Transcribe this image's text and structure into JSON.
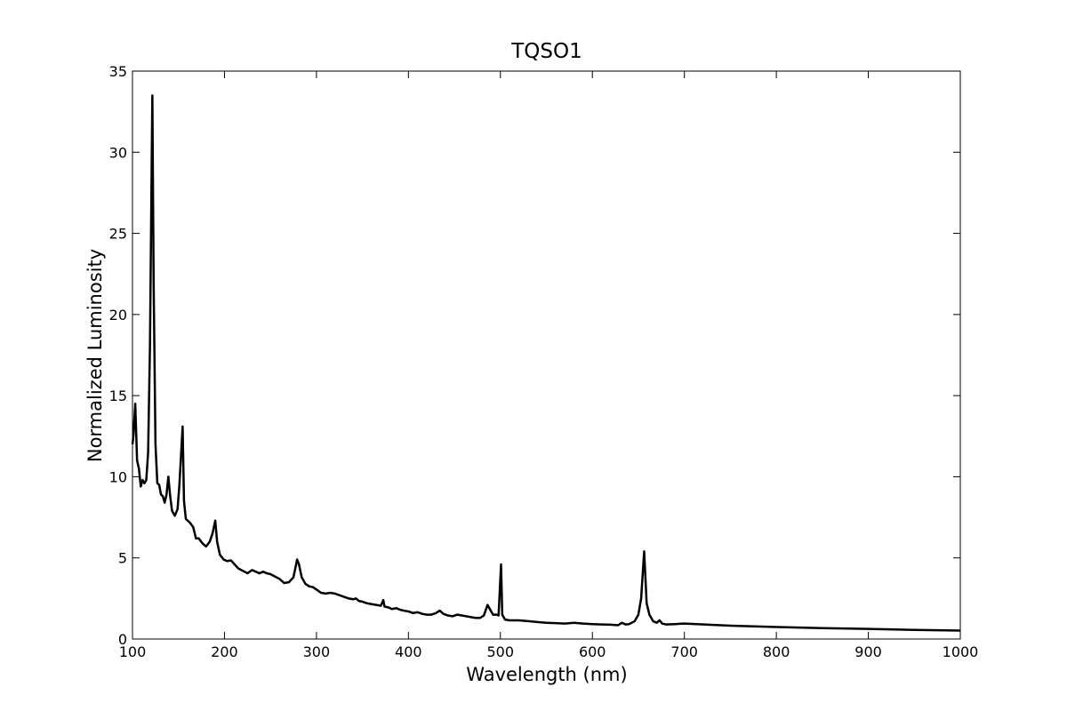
{
  "chart_data": {
    "type": "line",
    "title": "TQSO1",
    "xlabel": "Wavelength (nm)",
    "ylabel": "Normalized Luminosity",
    "color": "#000000",
    "xlim": [
      100,
      1000
    ],
    "ylim": [
      0,
      35
    ],
    "xticks": [
      100,
      200,
      300,
      400,
      500,
      600,
      700,
      800,
      900,
      1000
    ],
    "yticks": [
      0,
      5,
      10,
      15,
      20,
      25,
      30,
      35
    ],
    "x": [
      100,
      101,
      103,
      105,
      107,
      109,
      111,
      113,
      115,
      117,
      119,
      121.6,
      123,
      125,
      127,
      129,
      131,
      133,
      135,
      137,
      139,
      141,
      143,
      146,
      149,
      151,
      154.5,
      156,
      158,
      162,
      166,
      169,
      172,
      176,
      180,
      184,
      187,
      190,
      192,
      195,
      199,
      203,
      207,
      211,
      215,
      220,
      225,
      230,
      234,
      238,
      242,
      246,
      250,
      255,
      260,
      265,
      270,
      275,
      279,
      281,
      284,
      288,
      292,
      296,
      300,
      305,
      310,
      315,
      320,
      325,
      330,
      335,
      340,
      343,
      346,
      350,
      355,
      360,
      365,
      370,
      372.7,
      374,
      378,
      382,
      387,
      391,
      395,
      400,
      405,
      410,
      415,
      420,
      425,
      430,
      434,
      438,
      443,
      448,
      453,
      458,
      463,
      468,
      473,
      478,
      482,
      486,
      489,
      492,
      496,
      498,
      500.7,
      502,
      505,
      510,
      520,
      530,
      540,
      550,
      560,
      570,
      580,
      590,
      600,
      610,
      620,
      628,
      632,
      636,
      640,
      646,
      650,
      653,
      656.3,
      659,
      662,
      666,
      670,
      673,
      676,
      680,
      690,
      700,
      750,
      800,
      850,
      900,
      950,
      1000
    ],
    "values": [
      12.0,
      12.5,
      14.5,
      11.0,
      10.5,
      9.4,
      9.8,
      9.6,
      9.8,
      11.5,
      18,
      33.5,
      22,
      12,
      9.6,
      9.5,
      8.9,
      8.8,
      8.4,
      8.9,
      10.0,
      8.8,
      7.9,
      7.6,
      8.0,
      9.5,
      13.1,
      8.5,
      7.4,
      7.2,
      6.9,
      6.2,
      6.2,
      5.9,
      5.7,
      6.0,
      6.5,
      7.3,
      6.0,
      5.2,
      4.9,
      4.8,
      4.85,
      4.6,
      4.35,
      4.2,
      4.05,
      4.25,
      4.15,
      4.05,
      4.15,
      4.05,
      4.0,
      3.85,
      3.7,
      3.45,
      3.5,
      3.8,
      4.9,
      4.6,
      3.8,
      3.4,
      3.25,
      3.2,
      3.05,
      2.85,
      2.8,
      2.85,
      2.8,
      2.7,
      2.6,
      2.5,
      2.45,
      2.5,
      2.35,
      2.3,
      2.2,
      2.15,
      2.1,
      2.05,
      2.4,
      2.0,
      1.95,
      1.85,
      1.9,
      1.8,
      1.75,
      1.7,
      1.6,
      1.65,
      1.55,
      1.5,
      1.5,
      1.6,
      1.75,
      1.55,
      1.45,
      1.4,
      1.5,
      1.45,
      1.4,
      1.35,
      1.3,
      1.3,
      1.45,
      2.1,
      1.8,
      1.5,
      1.5,
      1.45,
      4.6,
      1.5,
      1.2,
      1.15,
      1.15,
      1.1,
      1.05,
      1.0,
      0.98,
      0.95,
      1.0,
      0.95,
      0.92,
      0.9,
      0.88,
      0.85,
      1.0,
      0.9,
      0.92,
      1.1,
      1.5,
      2.5,
      5.4,
      2.2,
      1.5,
      1.1,
      1.0,
      1.15,
      0.95,
      0.9,
      0.92,
      0.95,
      0.82,
      0.74,
      0.67,
      0.62,
      0.56,
      0.52
    ]
  }
}
